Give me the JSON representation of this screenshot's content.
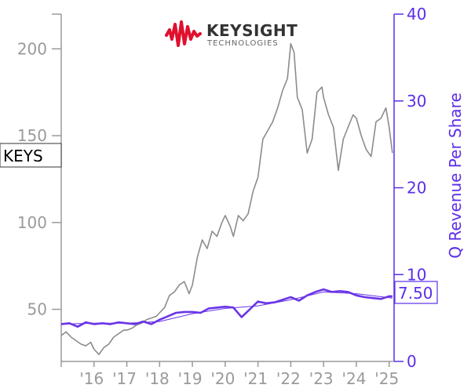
{
  "chart_data": {
    "type": "line",
    "ticker": "KEYS",
    "ylabel_right": "Q Revenue Per Share",
    "last_value_label": "7.50",
    "logo": {
      "name": "KEYSIGHT",
      "sub": "TECHNOLOGIES"
    },
    "x_ticks": [
      "'16",
      "'17",
      "'18",
      "'19",
      "'20",
      "'21",
      "'22",
      "'23",
      "'24",
      "'25"
    ],
    "xlim": [
      2015.0,
      2025.15
    ],
    "y_left_ticks": [
      "50",
      "100",
      "150",
      "200"
    ],
    "y_left_lim": [
      20,
      220
    ],
    "y_right_ticks": [
      "0",
      "10",
      "20",
      "30",
      "40"
    ],
    "y_right_lim": [
      0,
      40
    ],
    "colors": {
      "price": "#8c8c8c",
      "revenue": "#6a35e8",
      "axis_left": "#9a9a9a",
      "axis_right": "#5b2ee8",
      "logo_wave": "#e0102e"
    },
    "series": [
      {
        "name": "price",
        "axis": "left",
        "x": [
          2015.0,
          2015.15,
          2015.3,
          2015.45,
          2015.6,
          2015.75,
          2015.9,
          2016.0,
          2016.15,
          2016.3,
          2016.45,
          2016.6,
          2016.75,
          2016.9,
          2017.0,
          2017.15,
          2017.3,
          2017.45,
          2017.6,
          2017.75,
          2017.9,
          2018.0,
          2018.15,
          2018.3,
          2018.45,
          2018.6,
          2018.75,
          2018.9,
          2019.0,
          2019.15,
          2019.3,
          2019.45,
          2019.6,
          2019.75,
          2019.9,
          2020.0,
          2020.15,
          2020.25,
          2020.4,
          2020.55,
          2020.7,
          2020.85,
          2021.0,
          2021.15,
          2021.3,
          2021.45,
          2021.6,
          2021.75,
          2021.9,
          2022.0,
          2022.1,
          2022.2,
          2022.35,
          2022.5,
          2022.65,
          2022.8,
          2022.95,
          2023.0,
          2023.15,
          2023.3,
          2023.45,
          2023.6,
          2023.75,
          2023.9,
          2024.0,
          2024.15,
          2024.3,
          2024.45,
          2024.6,
          2024.75,
          2024.9,
          2025.0,
          2025.1
        ],
        "y": [
          35,
          37,
          34,
          32,
          30,
          29,
          31,
          27,
          24,
          28,
          30,
          34,
          36,
          38,
          38,
          39,
          41,
          42,
          44,
          45,
          46,
          48,
          51,
          58,
          60,
          64,
          66,
          59,
          64,
          80,
          90,
          85,
          95,
          92,
          100,
          104,
          98,
          92,
          104,
          101,
          105,
          118,
          126,
          148,
          153,
          158,
          166,
          176,
          183,
          203,
          198,
          172,
          165,
          140,
          148,
          175,
          178,
          172,
          162,
          155,
          130,
          148,
          155,
          162,
          160,
          150,
          142,
          138,
          158,
          160,
          166,
          155,
          140
        ]
      },
      {
        "name": "revenue_per_share",
        "axis": "right",
        "x": [
          2015.0,
          2015.25,
          2015.5,
          2015.75,
          2016.0,
          2016.25,
          2016.5,
          2016.75,
          2017.0,
          2017.25,
          2017.5,
          2017.75,
          2018.0,
          2018.25,
          2018.5,
          2018.75,
          2019.0,
          2019.25,
          2019.5,
          2019.75,
          2020.0,
          2020.25,
          2020.5,
          2020.75,
          2021.0,
          2021.25,
          2021.5,
          2021.75,
          2022.0,
          2022.25,
          2022.5,
          2022.75,
          2023.0,
          2023.25,
          2023.5,
          2023.75,
          2024.0,
          2024.25,
          2024.5,
          2024.75,
          2025.0,
          2025.1
        ],
        "y": [
          4.3,
          4.4,
          4.0,
          4.5,
          4.3,
          4.4,
          4.3,
          4.5,
          4.4,
          4.3,
          4.6,
          4.3,
          4.8,
          5.2,
          5.6,
          5.7,
          5.7,
          5.6,
          6.1,
          6.2,
          6.3,
          6.2,
          5.1,
          6.0,
          6.9,
          6.7,
          6.8,
          7.1,
          7.4,
          7.0,
          7.6,
          8.0,
          8.3,
          8.0,
          8.1,
          8.0,
          7.6,
          7.4,
          7.3,
          7.2,
          7.5,
          7.5
        ]
      },
      {
        "name": "revenue_trend",
        "axis": "right",
        "x": [
          2015.0,
          2016.0,
          2017.0,
          2018.0,
          2019.0,
          2020.0,
          2021.0,
          2022.0,
          2023.0,
          2024.0,
          2025.1
        ],
        "y": [
          4.3,
          4.4,
          4.4,
          4.6,
          5.5,
          6.1,
          6.4,
          7.1,
          8.0,
          7.8,
          7.3
        ]
      }
    ]
  }
}
